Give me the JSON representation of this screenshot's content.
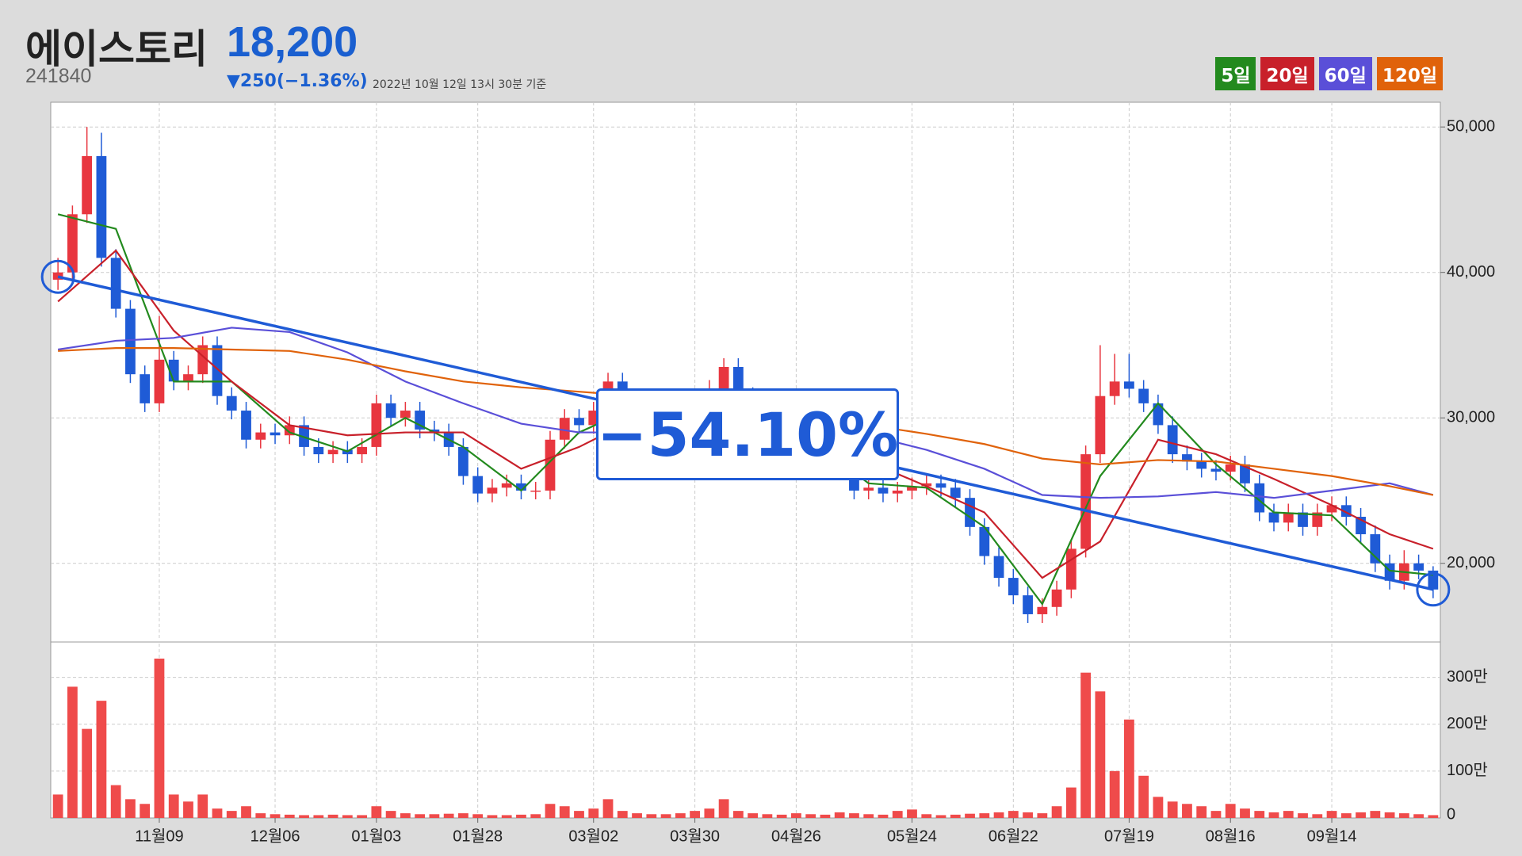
{
  "header": {
    "name": "에이스토리",
    "price": "18,200",
    "code": "241840",
    "change": "▼250(−1.36%)",
    "timestamp": "2022년 10월 12일 13시 30분 기준"
  },
  "chart_data": [
    {
      "type": "candlestick",
      "up_color": "#e8363f",
      "down_color": "#1f5bd6",
      "grid": true,
      "ylim": [
        14700,
        51700
      ],
      "yticks": [
        {
          "value": 20000,
          "label": "20,000"
        },
        {
          "value": 30000,
          "label": "30,000"
        },
        {
          "value": 40000,
          "label": "40,000"
        },
        {
          "value": 50000,
          "label": "50,000"
        }
      ],
      "candles": {
        "open": [
          39500,
          40000,
          44000,
          48000,
          41000,
          37500,
          33000,
          31000,
          34000,
          32500,
          33000,
          35000,
          31500,
          30500,
          28500,
          29000,
          28800,
          29500,
          28000,
          27500,
          27800,
          27500,
          28000,
          31000,
          30000,
          30500,
          29200,
          29000,
          28000,
          26000,
          24800,
          25200,
          25500,
          25000,
          25000,
          28500,
          30000,
          29500,
          30500,
          32500,
          31000,
          30000,
          29500,
          29500,
          30000,
          31000,
          32000,
          33500,
          31500,
          30000,
          29200,
          29000,
          28500,
          28000,
          27500,
          26500,
          25000,
          25200,
          24800,
          25000,
          25300,
          25500,
          25200,
          24500,
          22500,
          20500,
          19000,
          17800,
          16500,
          17000,
          18200,
          21000,
          27500,
          31500,
          32500,
          32000,
          31000,
          29500,
          27500,
          27000,
          26500,
          26300,
          26800,
          25500,
          23500,
          22800,
          23500,
          22500,
          23500,
          24000,
          23200,
          22000,
          20000,
          18800,
          20000,
          19500
        ],
        "high": [
          41000,
          44600,
          50000,
          49600,
          41600,
          38100,
          33600,
          37000,
          34600,
          33600,
          35600,
          35600,
          32100,
          31100,
          29600,
          29600,
          30100,
          30100,
          28600,
          28400,
          28400,
          28600,
          31600,
          31600,
          31100,
          31100,
          29800,
          29600,
          28600,
          26600,
          25800,
          26100,
          26100,
          25600,
          29100,
          30600,
          30600,
          31100,
          33100,
          33100,
          31600,
          30600,
          30100,
          30600,
          31600,
          32600,
          34100,
          34100,
          32100,
          30600,
          29800,
          29600,
          29100,
          28600,
          28100,
          27100,
          25800,
          25800,
          25600,
          25900,
          26100,
          26100,
          25800,
          25100,
          23100,
          21100,
          19600,
          18400,
          17600,
          18800,
          21600,
          28100,
          35000,
          34400,
          34400,
          32600,
          31600,
          30100,
          28100,
          27600,
          27100,
          27400,
          27400,
          26100,
          24100,
          24100,
          24100,
          24100,
          24600,
          24600,
          23800,
          22600,
          20600,
          20900,
          20600,
          19800
        ],
        "low": [
          38800,
          39400,
          43400,
          40400,
          36900,
          32400,
          30400,
          30400,
          31900,
          31900,
          32400,
          30900,
          29900,
          27900,
          27900,
          28200,
          28200,
          27400,
          26900,
          26900,
          26900,
          26900,
          27400,
          29400,
          29400,
          28600,
          28400,
          27400,
          25400,
          24200,
          24200,
          24600,
          24400,
          24400,
          24400,
          27900,
          28900,
          28900,
          29900,
          30400,
          29400,
          28900,
          28900,
          28900,
          29400,
          30400,
          31400,
          30900,
          29400,
          28600,
          28400,
          27900,
          27400,
          26900,
          25900,
          24400,
          24400,
          24200,
          24200,
          24400,
          24700,
          24600,
          23900,
          21900,
          19900,
          18400,
          17200,
          15900,
          15900,
          16400,
          17600,
          20400,
          26900,
          30900,
          31400,
          30400,
          28900,
          26900,
          26400,
          25900,
          25700,
          25700,
          24900,
          22900,
          22200,
          22200,
          21900,
          21900,
          22900,
          22600,
          21400,
          19400,
          18200,
          18200,
          18900,
          17600
        ],
        "close": [
          40000,
          44000,
          48000,
          41000,
          37500,
          33000,
          31000,
          34000,
          32500,
          33000,
          35000,
          31500,
          30500,
          28500,
          29000,
          28800,
          29500,
          28000,
          27500,
          27800,
          27500,
          28000,
          31000,
          30000,
          30500,
          29200,
          29000,
          28000,
          26000,
          24800,
          25200,
          25500,
          25000,
          25000,
          28500,
          30000,
          29500,
          30500,
          32500,
          31000,
          30000,
          29500,
          29500,
          30000,
          31000,
          32000,
          33500,
          31500,
          30000,
          29200,
          29000,
          28500,
          28000,
          27500,
          26500,
          25000,
          25200,
          24800,
          25000,
          25300,
          25500,
          25200,
          24500,
          22500,
          20500,
          19000,
          17800,
          16500,
          17000,
          18200,
          21000,
          27500,
          31500,
          32500,
          32000,
          31000,
          29500,
          27500,
          27000,
          26500,
          26300,
          26800,
          25500,
          23500,
          22800,
          23500,
          22500,
          23500,
          24000,
          23200,
          22000,
          20000,
          18800,
          20000,
          19500,
          18200
        ]
      },
      "ma_x": [
        0,
        4,
        8,
        12,
        16,
        20,
        24,
        28,
        32,
        36,
        40,
        44,
        48,
        52,
        56,
        60,
        64,
        68,
        72,
        76,
        80,
        84,
        88,
        92,
        95
      ],
      "series": [
        {
          "name": "5일",
          "color": "#238a1e",
          "values": [
            44000,
            43000,
            32500,
            32500,
            29000,
            27700,
            30000,
            28000,
            25000,
            29000,
            30800,
            30000,
            31500,
            28500,
            25500,
            25200,
            22500,
            17200,
            26000,
            31000,
            26800,
            23500,
            23300,
            19500,
            19200
          ]
        },
        {
          "name": "20일",
          "color": "#c8202a",
          "values": [
            38000,
            41500,
            36000,
            32500,
            29500,
            28800,
            29000,
            29000,
            26500,
            28000,
            30000,
            30300,
            30800,
            30000,
            27000,
            25300,
            23500,
            19000,
            21500,
            28500,
            27500,
            25800,
            24000,
            22000,
            21000
          ]
        },
        {
          "name": "60일",
          "color": "#5a4fd8",
          "values": [
            34700,
            35300,
            35500,
            36200,
            35900,
            34500,
            32500,
            31000,
            29600,
            29000,
            29000,
            29500,
            30000,
            29500,
            28800,
            27800,
            26500,
            24700,
            24500,
            24600,
            24900,
            24500,
            25000,
            25500,
            24700
          ]
        },
        {
          "name": "120일",
          "color": "#e0620a",
          "values": [
            34600,
            34800,
            34800,
            34700,
            34600,
            34000,
            33200,
            32500,
            32100,
            31800,
            31500,
            31200,
            30800,
            30200,
            29500,
            28900,
            28200,
            27200,
            26800,
            27100,
            27000,
            26500,
            26000,
            25300,
            24700
          ]
        }
      ],
      "annotation": {
        "text": "−54.10%",
        "x": [
          0,
          95
        ],
        "values": [
          39700,
          18200
        ],
        "color": "#1f5bd6"
      }
    },
    {
      "type": "bar",
      "color": "#ef4b4b",
      "grid": true,
      "categories": [
        null,
        null,
        null,
        null,
        null,
        null,
        null,
        "11월09",
        null,
        null,
        null,
        null,
        null,
        null,
        null,
        "12월06",
        null,
        null,
        null,
        null,
        null,
        null,
        "01월03",
        null,
        null,
        null,
        null,
        null,
        null,
        "01월28",
        null,
        null,
        null,
        null,
        null,
        null,
        null,
        "03월02",
        null,
        null,
        null,
        null,
        null,
        null,
        "03월30",
        null,
        null,
        null,
        null,
        null,
        null,
        "04월26",
        null,
        null,
        null,
        null,
        null,
        null,
        null,
        "05월24",
        null,
        null,
        null,
        null,
        null,
        null,
        "06월22",
        null,
        null,
        null,
        null,
        null,
        null,
        null,
        "07월19",
        null,
        null,
        null,
        null,
        null,
        null,
        "08월16",
        null,
        null,
        null,
        null,
        null,
        null,
        "09월14",
        null,
        null,
        null,
        null,
        null,
        null,
        null
      ],
      "ylim": [
        0,
        3720000
      ],
      "yticks": [
        0,
        {
          "value": 1000000,
          "label": "100만"
        },
        {
          "value": 2000000,
          "label": "200만"
        },
        {
          "value": 3000000,
          "label": "300만"
        }
      ],
      "values": [
        500000,
        2800000,
        1900000,
        2500000,
        700000,
        400000,
        300000,
        3400000,
        500000,
        350000,
        500000,
        200000,
        150000,
        250000,
        100000,
        80000,
        70000,
        60000,
        60000,
        70000,
        60000,
        60000,
        250000,
        150000,
        100000,
        80000,
        80000,
        90000,
        100000,
        80000,
        60000,
        60000,
        70000,
        80000,
        300000,
        250000,
        150000,
        200000,
        400000,
        150000,
        100000,
        80000,
        80000,
        100000,
        150000,
        200000,
        400000,
        150000,
        100000,
        80000,
        70000,
        100000,
        80000,
        70000,
        120000,
        100000,
        80000,
        70000,
        150000,
        180000,
        80000,
        60000,
        70000,
        90000,
        100000,
        120000,
        150000,
        120000,
        100000,
        250000,
        650000,
        3100000,
        2700000,
        1000000,
        2100000,
        900000,
        450000,
        350000,
        300000,
        250000,
        150000,
        300000,
        200000,
        150000,
        120000,
        150000,
        100000,
        80000,
        150000,
        100000,
        120000,
        150000,
        120000,
        100000,
        80000,
        60000
      ]
    }
  ]
}
